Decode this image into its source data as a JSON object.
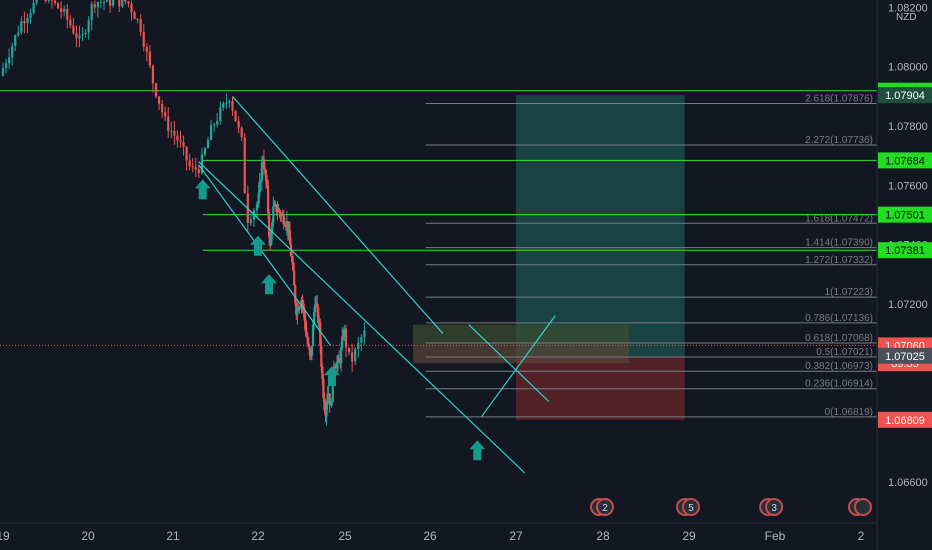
{
  "chart_data": {
    "type": "candlestick",
    "symbol_currency": "NZD",
    "y_axis": {
      "ticks": [
        {
          "label": "1.08200",
          "value": 1.082
        },
        {
          "label": "1.08000",
          "value": 1.08
        },
        {
          "label": "1.07800",
          "value": 1.078
        },
        {
          "label": "1.07600",
          "value": 1.076
        },
        {
          "label": "1.07400",
          "value": 1.074
        },
        {
          "label": "1.07200",
          "value": 1.072
        },
        {
          "label": "1.07000",
          "value": 1.07
        },
        {
          "label": "1.06800",
          "value": 1.068
        },
        {
          "label": "1.06600",
          "value": 1.066
        }
      ]
    },
    "x_axis": {
      "labels": [
        {
          "label": "19",
          "day": 19
        },
        {
          "label": "20",
          "day": 20
        },
        {
          "label": "21",
          "day": 21
        },
        {
          "label": "22",
          "day": 22
        },
        {
          "label": "25",
          "day": 25
        },
        {
          "label": "26",
          "day": 26
        },
        {
          "label": "27",
          "day": 27
        },
        {
          "label": "28",
          "day": 28
        },
        {
          "label": "29",
          "day": 29
        },
        {
          "label": "Feb",
          "day": 32
        },
        {
          "label": "2",
          "day": 33
        }
      ]
    },
    "price_path": [
      [
        19.0,
        1.0797
      ],
      [
        19.25,
        1.0815
      ],
      [
        19.5,
        1.0825
      ],
      [
        19.75,
        1.0818
      ],
      [
        19.95,
        1.0808
      ],
      [
        20.1,
        1.0822
      ],
      [
        20.5,
        1.0822
      ],
      [
        20.65,
        1.0814
      ],
      [
        20.8,
        1.0795
      ],
      [
        20.95,
        1.0781
      ],
      [
        21.1,
        1.0775
      ],
      [
        21.25,
        1.0765
      ],
      [
        21.35,
        1.0766
      ],
      [
        21.5,
        1.078
      ],
      [
        21.7,
        1.079
      ],
      [
        21.85,
        1.0774
      ],
      [
        21.9,
        1.0748
      ],
      [
        22.05,
        1.0755
      ],
      [
        22.2,
        1.077
      ],
      [
        22.35,
        1.0758
      ],
      [
        22.45,
        1.0738
      ],
      [
        22.55,
        1.0752
      ],
      [
        22.7,
        1.0752
      ],
      [
        23.05,
        1.0747
      ],
      [
        23.2,
        1.0735
      ],
      [
        23.35,
        1.0718
      ],
      [
        23.55,
        1.0722
      ],
      [
        23.7,
        1.071
      ],
      [
        23.85,
        1.07
      ],
      [
        24.0,
        1.0722
      ],
      [
        24.15,
        1.0712
      ],
      [
        24.25,
        1.0695
      ],
      [
        24.35,
        1.0683
      ],
      [
        24.45,
        1.0692
      ],
      [
        24.55,
        1.0684
      ],
      [
        24.65,
        1.07
      ],
      [
        24.85,
        1.07
      ],
      [
        25.0,
        1.0712
      ],
      [
        25.1,
        1.07
      ],
      [
        25.25,
        1.071
      ]
    ],
    "horizontal_levels": [
      {
        "label": "1.07919",
        "value": 1.07919,
        "color": "#2ee62e"
      },
      {
        "label": "1.07684",
        "value": 1.07684,
        "color": "#2ee62e"
      },
      {
        "label": "1.07501",
        "value": 1.07501,
        "color": "#2ee62e"
      },
      {
        "label": "1.07381",
        "value": 1.07381,
        "color": "#2ee62e"
      }
    ],
    "price_labels": [
      {
        "label": "1.07904",
        "value": 1.07904,
        "bg": "#1f4e3f",
        "fg": "#ffffff"
      },
      {
        "label": "1.07060",
        "value": 1.0706,
        "bg": "#ef5350",
        "fg": "#ffffff"
      },
      {
        "label": "39:55",
        "value": 1.07,
        "bg": "#ef5350",
        "fg": "#ffffff"
      },
      {
        "label": "1.07025",
        "value": 1.07025,
        "bg": "#4a4f5c",
        "fg": "#ffffff"
      },
      {
        "label": "1.06809",
        "value": 1.06809,
        "bg": "#ef5350",
        "fg": "#ffffff"
      }
    ],
    "current_price": 1.0706,
    "fibonacci": {
      "from_day": 25.95,
      "to_day": 29.0,
      "levels": [
        {
          "label": "2.618(1.07876)",
          "value": 1.07876
        },
        {
          "label": "2.272(1.07736)",
          "value": 1.07736
        },
        {
          "label": "1.618(1.07472)",
          "value": 1.07472
        },
        {
          "label": "1.414(1.07390)",
          "value": 1.0739
        },
        {
          "label": "1.272(1.07332)",
          "value": 1.07332
        },
        {
          "label": "1(1.07223)",
          "value": 1.07223
        },
        {
          "label": "0.786(1.07136)",
          "value": 1.07136
        },
        {
          "label": "0.618(1.07068)",
          "value": 1.07068
        },
        {
          "label": "0.5(1.07021)",
          "value": 1.07021
        },
        {
          "label": "0.382(1.06973)",
          "value": 1.06973
        },
        {
          "label": "0.236(1.06914)",
          "value": 1.06914
        },
        {
          "label": "0(1.06819)",
          "value": 1.06819
        }
      ]
    },
    "position": {
      "from_day": 27.0,
      "to_day": 28.95,
      "entry": 1.0702,
      "target": 1.07904,
      "stop": 1.06809
    },
    "channel": {
      "upper": [
        [
          21.7,
          1.079
        ],
        [
          26.15,
          1.071
        ]
      ],
      "lower": [
        [
          21.3,
          1.0768
        ],
        [
          27.1,
          1.0663
        ]
      ],
      "mid": [
        [
          21.3,
          1.0767
        ],
        [
          24.5,
          1.0706
        ]
      ]
    },
    "triangle_lines": [
      [
        [
          26.6,
          1.0682
        ],
        [
          27.45,
          1.0716
        ]
      ],
      [
        [
          26.45,
          1.0713
        ],
        [
          27.38,
          1.0687
        ]
      ]
    ],
    "arrows": [
      {
        "day": 21.35,
        "value": 1.0762
      },
      {
        "day": 22.0,
        "value": 1.0743
      },
      {
        "day": 22.38,
        "value": 1.073
      },
      {
        "day": 24.55,
        "value": 1.0699
      },
      {
        "day": 26.55,
        "value": 1.0674
      }
    ],
    "event_markers": [
      {
        "day": 28.0,
        "count": "2"
      },
      {
        "day": 29.0,
        "count": "5"
      },
      {
        "day": 31.9,
        "count": "3"
      },
      {
        "day": 33.0,
        "count": ""
      }
    ],
    "colors": {
      "background": "#131722",
      "up_candle": "#26a69a",
      "down_candle": "#ef5350",
      "channel": "#2fd3c7",
      "arrow": "#149a8d",
      "fib_line": "#787b86",
      "target_zone": "#1b4b49",
      "stop_zone": "#5a2329",
      "axis_text": "#b2b5be"
    }
  }
}
